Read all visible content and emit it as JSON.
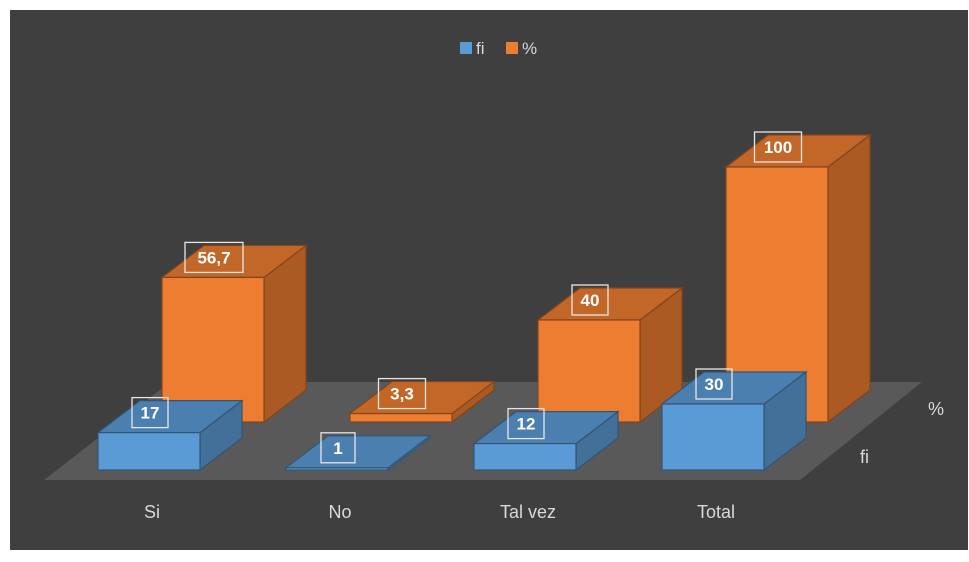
{
  "chart_data": {
    "type": "bar",
    "categories": [
      "Si",
      "No",
      "Tal vez",
      "Total"
    ],
    "series": [
      {
        "name": "fi",
        "values": [
          17,
          1,
          12,
          30
        ],
        "labels": [
          "17",
          "1",
          "12",
          "30"
        ],
        "color": "#5b9bd5"
      },
      {
        "name": "%",
        "values": [
          56.7,
          3.3,
          40,
          100
        ],
        "labels": [
          "56,7",
          "3,3",
          "40",
          "100"
        ],
        "color": "#ed7d31"
      }
    ],
    "depth_labels": [
      "%",
      "fi"
    ],
    "legend_position": "top-center",
    "grid": false,
    "three_d": true
  }
}
